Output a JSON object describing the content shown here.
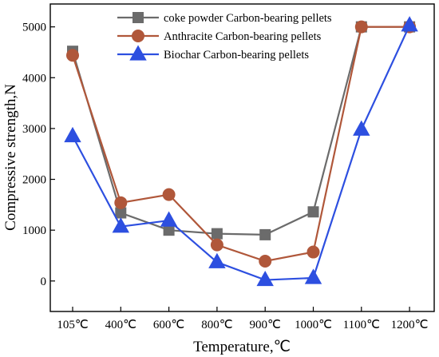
{
  "chart_data": {
    "type": "line",
    "title": "",
    "xlabel": "Temperature,℃",
    "ylabel": "Compressive strength,N",
    "categories": [
      "105℃",
      "400℃",
      "600℃",
      "800℃",
      "900℃",
      "1000℃",
      "1100℃",
      "1200℃"
    ],
    "ylim": [
      -600,
      5450
    ],
    "yticks": [
      0,
      1000,
      2000,
      3000,
      4000,
      5000
    ],
    "grid": false,
    "legend_position": "top-right",
    "series": [
      {
        "name": "coke powder Carbon-bearing pellets",
        "marker": "square",
        "color": "#6b6b6b",
        "values": [
          4520,
          1340,
          1000,
          930,
          910,
          1360,
          5000,
          5000
        ]
      },
      {
        "name": "Anthracite Carbon-bearing pellets",
        "marker": "circle",
        "color": "#b0573a",
        "values": [
          4440,
          1540,
          1700,
          710,
          390,
          570,
          5000,
          5000
        ]
      },
      {
        "name": "Biochar Carbon-bearing pellets",
        "marker": "triangle",
        "color": "#2d4fe0",
        "values": [
          2850,
          1070,
          1190,
          370,
          20,
          60,
          2980,
          5030
        ]
      }
    ]
  }
}
